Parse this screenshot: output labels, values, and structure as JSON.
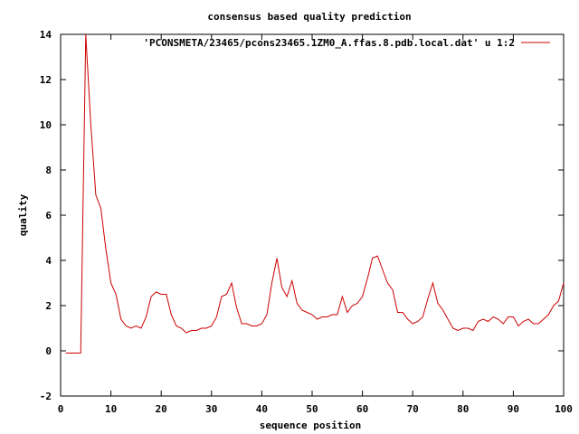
{
  "chart_data": {
    "type": "line",
    "title": "consensus based quality prediction",
    "xlabel": "sequence position",
    "ylabel": "quality",
    "xlim": [
      0,
      100
    ],
    "ylim": [
      -2,
      14
    ],
    "x_ticks": [
      0,
      10,
      20,
      30,
      40,
      50,
      60,
      70,
      80,
      90,
      100
    ],
    "y_ticks": [
      -2,
      0,
      2,
      4,
      6,
      8,
      10,
      12,
      14
    ],
    "x_tick_labels": [
      "0",
      "10",
      "20",
      "30",
      "40",
      "50",
      "60",
      "70",
      "80",
      "90",
      "100"
    ],
    "y_tick_labels": [
      "-2",
      "0",
      "2",
      "4",
      "6",
      "8",
      "10",
      "12",
      "14"
    ],
    "grid": false,
    "legend_position": "top-right",
    "series": [
      {
        "name": "'PCONSMETA/23465/pcons23465.1ZM0_A.ffas.8.pdb.local.dat' u 1:2",
        "color": "#cc0000",
        "x": [
          1,
          2,
          3,
          4,
          5,
          6,
          7,
          8,
          9,
          10,
          11,
          12,
          13,
          14,
          15,
          16,
          17,
          18,
          19,
          20,
          21,
          22,
          23,
          24,
          25,
          26,
          27,
          28,
          29,
          30,
          31,
          32,
          33,
          34,
          35,
          36,
          37,
          38,
          39,
          40,
          41,
          42,
          43,
          44,
          45,
          46,
          47,
          48,
          49,
          50,
          51,
          52,
          53,
          54,
          55,
          56,
          57,
          58,
          59,
          60,
          61,
          62,
          63,
          64,
          65,
          66,
          67,
          68,
          69,
          70,
          71,
          72,
          73,
          74,
          75,
          76,
          77,
          78,
          79,
          80,
          81,
          82,
          83,
          84,
          85,
          86,
          87,
          88,
          89,
          90,
          91,
          92,
          93,
          94,
          95,
          96,
          97,
          98,
          99,
          100
        ],
        "y": [
          -0.1,
          -0.1,
          -0.1,
          -0.1,
          14.2,
          10.0,
          6.9,
          6.3,
          4.5,
          3.0,
          2.5,
          1.4,
          1.1,
          1.0,
          1.1,
          1.0,
          1.5,
          2.4,
          2.6,
          2.5,
          2.5,
          1.6,
          1.1,
          1.0,
          0.8,
          0.9,
          0.9,
          1.0,
          1.0,
          1.1,
          1.5,
          2.4,
          2.5,
          3.0,
          1.9,
          1.2,
          1.2,
          1.1,
          1.1,
          1.2,
          1.6,
          3.0,
          4.1,
          2.8,
          2.4,
          3.1,
          2.1,
          1.8,
          1.7,
          1.6,
          1.4,
          1.5,
          1.5,
          1.6,
          1.6,
          2.4,
          1.7,
          2.0,
          2.1,
          2.4,
          3.2,
          4.1,
          4.2,
          3.6,
          3.0,
          2.7,
          1.7,
          1.7,
          1.4,
          1.2,
          1.3,
          1.5,
          2.3,
          3.0,
          2.1,
          1.8,
          1.4,
          1.0,
          0.9,
          1.0,
          1.0,
          0.9,
          1.3,
          1.4,
          1.3,
          1.5,
          1.4,
          1.2,
          1.5,
          1.5,
          1.1,
          1.3,
          1.4,
          1.2,
          1.2,
          1.4,
          1.6,
          2.0,
          2.2,
          3.0
        ]
      }
    ]
  }
}
